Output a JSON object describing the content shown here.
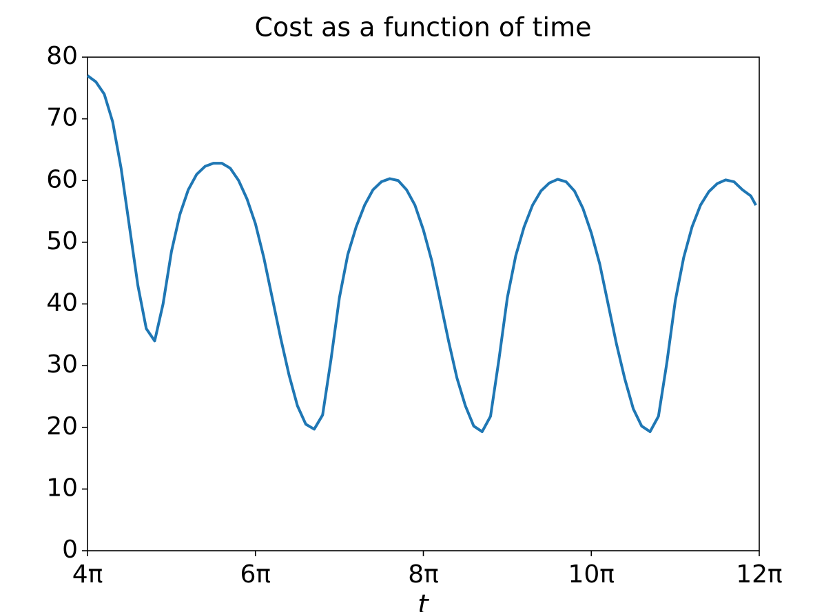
{
  "chart_data": {
    "type": "line",
    "title": "Cost as a function of time",
    "xlabel": "t",
    "x": [
      4.0,
      4.1,
      4.2,
      4.3,
      4.4,
      4.5,
      4.6,
      4.7,
      4.8,
      4.9,
      5.0,
      5.1,
      5.2,
      5.3,
      5.4,
      5.5,
      5.6,
      5.7,
      5.8,
      5.9,
      6.0,
      6.1,
      6.2,
      6.3,
      6.4,
      6.5,
      6.6,
      6.7,
      6.8,
      6.9,
      7.0,
      7.1,
      7.2,
      7.3,
      7.4,
      7.5,
      7.6,
      7.7,
      7.8,
      7.9,
      8.0,
      8.1,
      8.2,
      8.3,
      8.4,
      8.5,
      8.6,
      8.7,
      8.8,
      8.9,
      9.0,
      9.1,
      9.2,
      9.3,
      9.4,
      9.5,
      9.6,
      9.7,
      9.8,
      9.9,
      10.0,
      10.1,
      10.2,
      10.3,
      10.4,
      10.5,
      10.6,
      10.7,
      10.8,
      10.9,
      11.0,
      11.1,
      11.2,
      11.3,
      11.4,
      11.5,
      11.6,
      11.7,
      11.8,
      11.9,
      11.96
    ],
    "series": [
      {
        "color": "#1f77b4",
        "values": [
          77.0,
          76.0,
          74.0,
          69.5,
          62.0,
          52.5,
          43.0,
          36.0,
          34.0,
          40.0,
          48.5,
          54.5,
          58.5,
          61.0,
          62.3,
          62.8,
          62.8,
          62.0,
          60.0,
          57.0,
          53.0,
          47.5,
          41.0,
          34.5,
          28.5,
          23.5,
          20.5,
          19.7,
          22.0,
          31.0,
          41.0,
          48.0,
          52.5,
          56.0,
          58.5,
          59.8,
          60.3,
          60.0,
          58.5,
          56.0,
          52.0,
          47.0,
          40.5,
          34.0,
          28.0,
          23.5,
          20.2,
          19.3,
          21.8,
          31.0,
          41.0,
          47.8,
          52.5,
          56.0,
          58.3,
          59.6,
          60.2,
          59.8,
          58.3,
          55.5,
          51.5,
          46.5,
          40.0,
          33.5,
          27.8,
          23.0,
          20.2,
          19.3,
          21.8,
          30.5,
          40.5,
          47.5,
          52.5,
          56.0,
          58.2,
          59.5,
          60.1,
          59.8,
          58.5,
          57.5,
          56.0
        ]
      }
    ],
    "xlim": [
      4,
      12
    ],
    "xticks": [
      {
        "value": 4,
        "label": "4π"
      },
      {
        "value": 6,
        "label": "6π"
      },
      {
        "value": 8,
        "label": "8π"
      },
      {
        "value": 10,
        "label": "10π"
      },
      {
        "value": 12,
        "label": "12π"
      }
    ],
    "ylim": [
      0,
      80
    ],
    "yticks": [
      0,
      10,
      20,
      30,
      40,
      50,
      60,
      70,
      80
    ],
    "grid": false
  }
}
